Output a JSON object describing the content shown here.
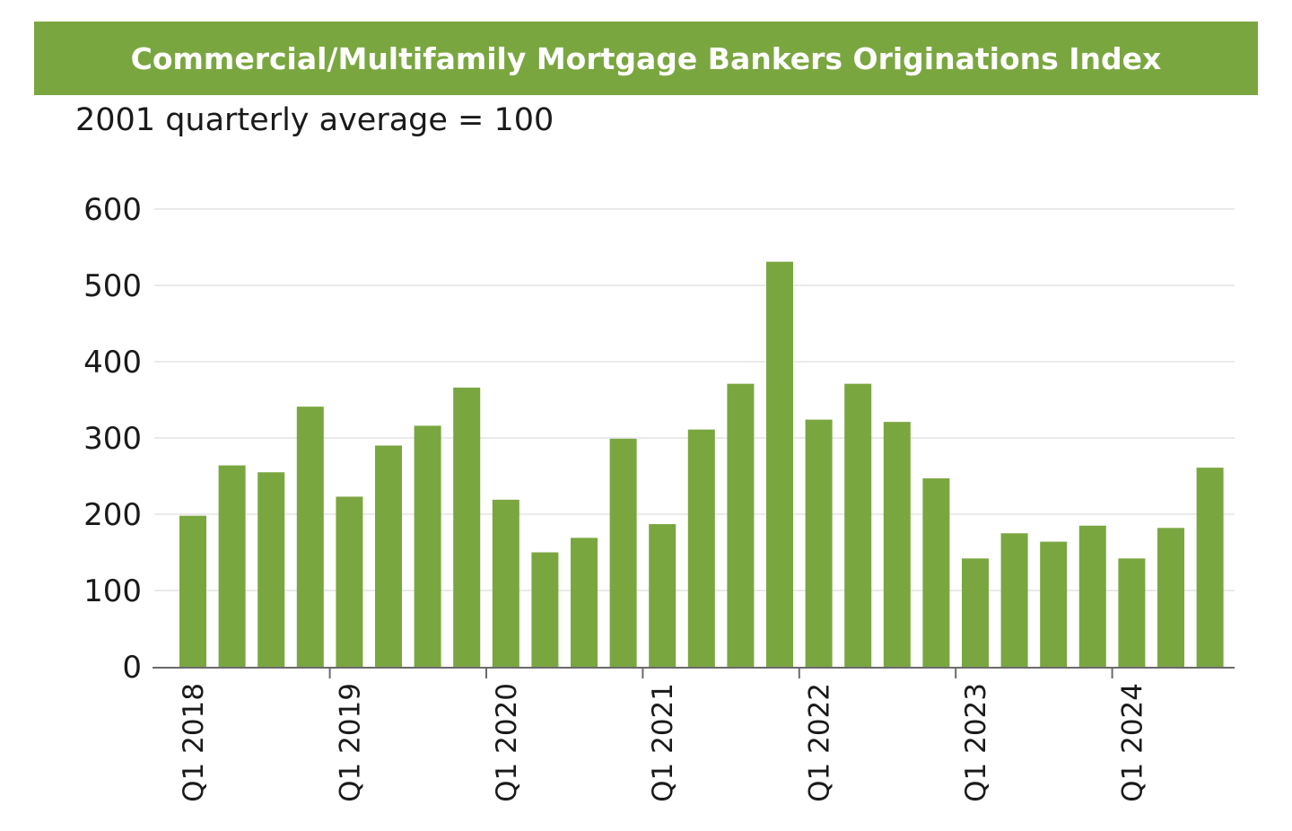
{
  "chart_data": {
    "type": "bar",
    "title": "Commercial/Multifamily Mortgage Bankers Originations Index",
    "subtitle": "2001 quarterly average = 100",
    "xlabel": "",
    "ylabel": "",
    "ylim": [
      0,
      600
    ],
    "yticks": [
      0,
      100,
      200,
      300,
      400,
      500,
      600
    ],
    "grid": true,
    "legend": "none",
    "bar_color": "#7aa640",
    "x_tick_labels": [
      "Q1 2018",
      "Q1 2019",
      "Q1 2020",
      "Q1 2021",
      "Q1 2022",
      "Q1 2023",
      "Q1 2024"
    ],
    "categories": [
      "Q1 2018",
      "Q2 2018",
      "Q3 2018",
      "Q4 2018",
      "Q1 2019",
      "Q2 2019",
      "Q3 2019",
      "Q4 2019",
      "Q1 2020",
      "Q2 2020",
      "Q3 2020",
      "Q4 2020",
      "Q1 2021",
      "Q2 2021",
      "Q3 2021",
      "Q4 2021",
      "Q1 2022",
      "Q2 2022",
      "Q3 2022",
      "Q4 2022",
      "Q1 2023",
      "Q2 2023",
      "Q3 2023",
      "Q4 2023",
      "Q1 2024",
      "Q2 2024",
      "Q3 2024"
    ],
    "values": [
      198,
      264,
      255,
      341,
      223,
      290,
      316,
      366,
      219,
      150,
      169,
      299,
      187,
      311,
      371,
      531,
      324,
      371,
      321,
      247,
      142,
      175,
      164,
      185,
      142,
      182,
      261
    ]
  }
}
